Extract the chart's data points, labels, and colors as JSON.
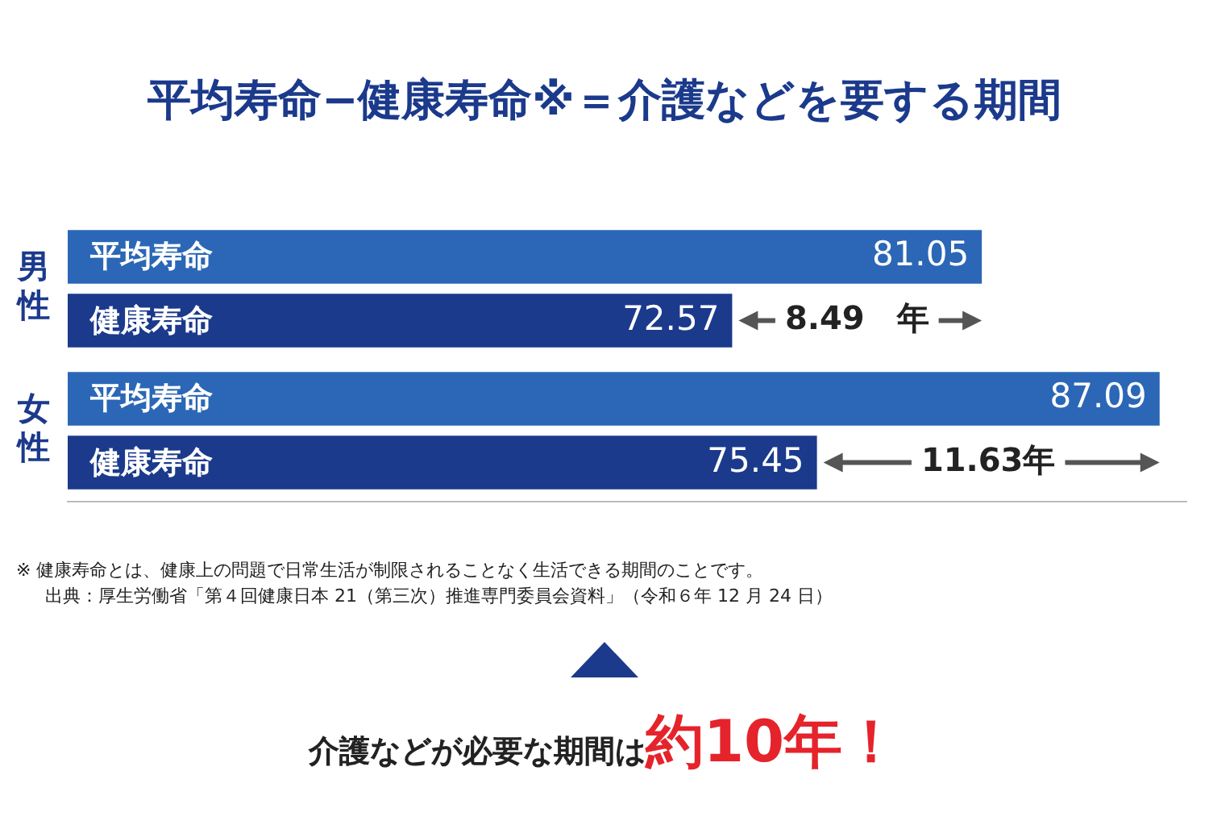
{
  "chart_data": {
    "type": "bar",
    "orientation": "horizontal",
    "title": "平均寿命−健康寿命※＝介護などを要する期間",
    "categories": [
      "男性",
      "女性"
    ],
    "series": [
      {
        "name": "平均寿命",
        "color": "#2b67b6",
        "values": [
          81.05,
          87.09
        ]
      },
      {
        "name": "健康寿命",
        "color": "#1b3a8c",
        "values": [
          72.57,
          75.45
        ]
      }
    ],
    "xlim": [
      50,
      88
    ],
    "tick_labels": "y",
    "data_labels": true,
    "annotations": [
      {
        "text": "8.49　年",
        "x": 76.81,
        "y": "男性"
      },
      {
        "text": "11.63年",
        "x": 81.27,
        "y": "女性"
      },
      "※ 健康寿命とは、健康上の問題で日常生活が制限されることなく生活できる期間のことです。",
      "出典：厚生労働省「第４回健康日本 21（第三次）推進専門委員会資料」（令和６年 12 月 24 日）",
      "介護などが必要な期間は",
      "約10年！"
    ]
  }
}
